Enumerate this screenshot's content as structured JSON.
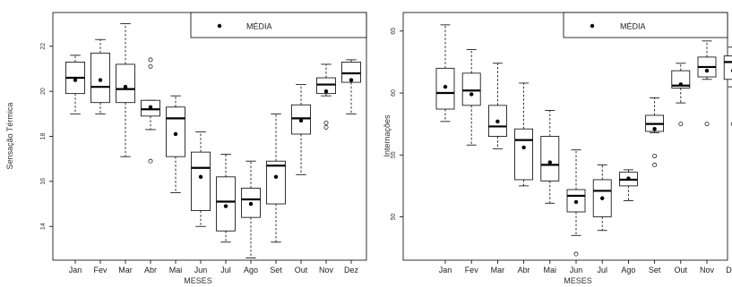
{
  "chart_data": [
    {
      "type": "boxplot",
      "categories": [
        "Jan",
        "Fev",
        "Mar",
        "Abr",
        "Mai",
        "Jun",
        "Jul",
        "Ago",
        "Set",
        "Out",
        "Nov",
        "Dez"
      ],
      "xlabel": "MESES",
      "ylabel": "Sensação Térmica",
      "ylim": [
        12.5,
        23.5
      ],
      "yticks": [
        14,
        16,
        18,
        20,
        22
      ],
      "legend": {
        "label": "MÉDIA",
        "position": "top-right"
      },
      "boxes": [
        {
          "min": 19.0,
          "q1": 19.9,
          "median": 20.6,
          "q3": 21.3,
          "max": 21.6,
          "mean": 20.5,
          "outliers": []
        },
        {
          "min": 19.0,
          "q1": 19.5,
          "median": 20.2,
          "q3": 21.7,
          "max": 22.3,
          "mean": 20.5,
          "outliers": []
        },
        {
          "min": 17.1,
          "q1": 19.5,
          "median": 20.1,
          "q3": 21.2,
          "max": 23.0,
          "mean": 20.2,
          "outliers": []
        },
        {
          "min": 18.3,
          "q1": 18.9,
          "median": 19.2,
          "q3": 19.6,
          "max": 19.6,
          "mean": 19.3,
          "outliers": [
            16.9,
            21.1,
            21.4
          ]
        },
        {
          "min": 15.5,
          "q1": 17.1,
          "median": 18.8,
          "q3": 19.3,
          "max": 19.8,
          "mean": 18.1,
          "outliers": []
        },
        {
          "min": 14.0,
          "q1": 14.7,
          "median": 16.6,
          "q3": 17.3,
          "max": 18.2,
          "mean": 16.2,
          "outliers": []
        },
        {
          "min": 13.3,
          "q1": 13.8,
          "median": 15.1,
          "q3": 16.2,
          "max": 17.2,
          "mean": 14.9,
          "outliers": []
        },
        {
          "min": 12.6,
          "q1": 14.4,
          "median": 15.2,
          "q3": 15.7,
          "max": 16.9,
          "mean": 15.0,
          "outliers": []
        },
        {
          "min": 13.3,
          "q1": 15.0,
          "median": 16.7,
          "q3": 16.9,
          "max": 19.0,
          "mean": 16.2,
          "outliers": []
        },
        {
          "min": 16.3,
          "q1": 18.1,
          "median": 18.8,
          "q3": 19.4,
          "max": 20.3,
          "mean": 18.7,
          "outliers": []
        },
        {
          "min": 19.8,
          "q1": 19.9,
          "median": 20.3,
          "q3": 20.6,
          "max": 21.2,
          "mean": 20.0,
          "outliers": [
            18.4,
            18.6
          ]
        },
        {
          "min": 19.0,
          "q1": 20.4,
          "median": 20.8,
          "q3": 21.3,
          "max": 21.4,
          "mean": 20.5,
          "outliers": []
        }
      ]
    },
    {
      "type": "boxplot",
      "categories": [
        "Jan",
        "Fev",
        "Mar",
        "Abr",
        "Mai",
        "Jun",
        "Jul",
        "Ago",
        "Set",
        "Out",
        "Nov",
        "Dez"
      ],
      "xlabel": "MESES",
      "ylabel": "Internações",
      "ylim": [
        46.5,
        66.5
      ],
      "yticks": [
        50,
        55,
        60,
        65
      ],
      "legend": {
        "label": "MÉDIA",
        "position": "top-right"
      },
      "boxes": [
        {
          "min": 57.7,
          "q1": 58.7,
          "median": 60.0,
          "q3": 62.0,
          "max": 65.5,
          "mean": 60.5,
          "outliers": []
        },
        {
          "min": 55.8,
          "q1": 59.0,
          "median": 60.2,
          "q3": 61.6,
          "max": 63.5,
          "mean": 59.9,
          "outliers": []
        },
        {
          "min": 55.5,
          "q1": 56.5,
          "median": 57.3,
          "q3": 59.0,
          "max": 62.4,
          "mean": 57.7,
          "outliers": []
        },
        {
          "min": 52.5,
          "q1": 53.0,
          "median": 56.2,
          "q3": 57.1,
          "max": 60.8,
          "mean": 55.6,
          "outliers": []
        },
        {
          "min": 51.1,
          "q1": 52.9,
          "median": 54.2,
          "q3": 56.5,
          "max": 58.6,
          "mean": 54.4,
          "outliers": []
        },
        {
          "min": 48.5,
          "q1": 50.4,
          "median": 51.7,
          "q3": 52.2,
          "max": 55.4,
          "mean": 51.2,
          "outliers": [
            47.0
          ]
        },
        {
          "min": 48.9,
          "q1": 50.0,
          "median": 52.1,
          "q3": 53.0,
          "max": 54.2,
          "mean": 51.5,
          "outliers": []
        },
        {
          "min": 51.3,
          "q1": 52.5,
          "median": 53.0,
          "q3": 53.6,
          "max": 53.8,
          "mean": 53.1,
          "outliers": []
        },
        {
          "min": 56.8,
          "q1": 56.9,
          "median": 57.5,
          "q3": 58.2,
          "max": 59.6,
          "mean": 57.1,
          "outliers": [
            54.2,
            54.9
          ]
        },
        {
          "min": 59.2,
          "q1": 60.4,
          "median": 60.6,
          "q3": 61.8,
          "max": 62.4,
          "mean": 60.7,
          "outliers": [
            57.5
          ]
        },
        {
          "min": 61.1,
          "q1": 61.3,
          "median": 62.1,
          "q3": 62.9,
          "max": 64.2,
          "mean": 61.8,
          "outliers": [
            57.5
          ]
        },
        {
          "min": 60.5,
          "q1": 61.1,
          "median": 62.5,
          "q3": 63.0,
          "max": 63.7,
          "mean": 61.8,
          "outliers": [
            57.5
          ]
        }
      ]
    }
  ]
}
